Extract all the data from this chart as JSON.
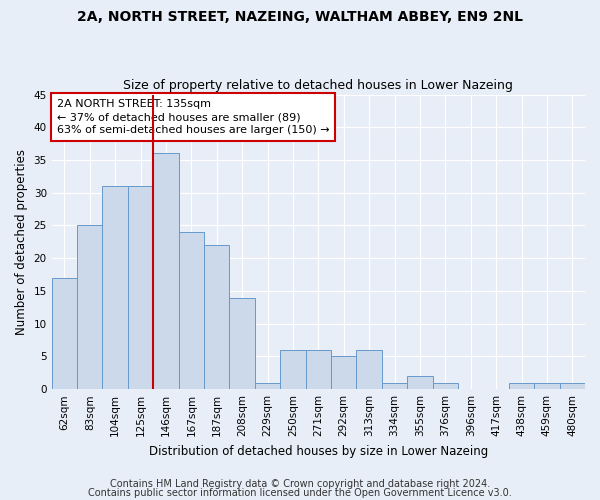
{
  "title": "2A, NORTH STREET, NAZEING, WALTHAM ABBEY, EN9 2NL",
  "subtitle": "Size of property relative to detached houses in Lower Nazeing",
  "xlabel": "Distribution of detached houses by size in Lower Nazeing",
  "ylabel": "Number of detached properties",
  "categories": [
    "62sqm",
    "83sqm",
    "104sqm",
    "125sqm",
    "146sqm",
    "167sqm",
    "187sqm",
    "208sqm",
    "229sqm",
    "250sqm",
    "271sqm",
    "292sqm",
    "313sqm",
    "334sqm",
    "355sqm",
    "376sqm",
    "396sqm",
    "417sqm",
    "438sqm",
    "459sqm",
    "480sqm"
  ],
  "values": [
    17,
    25,
    31,
    31,
    36,
    24,
    22,
    14,
    1,
    6,
    6,
    5,
    6,
    1,
    2,
    1,
    0,
    0,
    1,
    1,
    1
  ],
  "bar_color": "#ccd9ea",
  "bar_edge_color": "#6699cc",
  "annotation_line1": "2A NORTH STREET: 135sqm",
  "annotation_line2": "← 37% of detached houses are smaller (89)",
  "annotation_line3": "63% of semi-detached houses are larger (150) →",
  "annotation_box_color": "#ffffff",
  "annotation_box_edge_color": "#cc0000",
  "vline_color": "#cc0000",
  "vline_x_index": 3.5,
  "ylim": [
    0,
    45
  ],
  "yticks": [
    0,
    5,
    10,
    15,
    20,
    25,
    30,
    35,
    40,
    45
  ],
  "footer_line1": "Contains HM Land Registry data © Crown copyright and database right 2024.",
  "footer_line2": "Contains public sector information licensed under the Open Government Licence v3.0.",
  "bg_color": "#e8eef7",
  "plot_bg_color": "#e8eef7",
  "grid_color": "#ffffff",
  "title_fontsize": 10,
  "subtitle_fontsize": 9,
  "axis_label_fontsize": 8.5,
  "tick_fontsize": 7.5,
  "annotation_fontsize": 8,
  "footer_fontsize": 7
}
